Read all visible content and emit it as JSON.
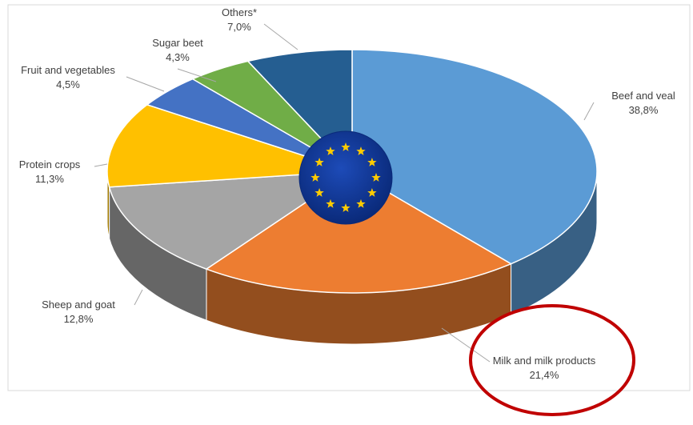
{
  "chart_data": {
    "type": "pie",
    "style": "3d",
    "categories": [
      "Beef and veal",
      "Milk and milk products",
      "Sheep and goat",
      "Protein crops",
      "Fruit and vegetables",
      "Sugar beet",
      "Others*"
    ],
    "values": [
      38.8,
      21.4,
      12.8,
      11.3,
      4.5,
      4.3,
      7.0
    ],
    "value_labels": [
      "38,8%",
      "21,4%",
      "12,8%",
      "11,3%",
      "4,5%",
      "4,3%",
      "7,0%"
    ],
    "colors": [
      "#5b9bd5",
      "#ed7d31",
      "#a5a5a5",
      "#ffc000",
      "#4472c4",
      "#70ad47",
      "#255e91"
    ],
    "highlight": {
      "category": "Milk and milk products",
      "color": "#c00000"
    },
    "center_emblem": {
      "name": "eu-flag-icon",
      "background": "#003399",
      "star_color": "#ffcc00",
      "stars": 12
    }
  }
}
